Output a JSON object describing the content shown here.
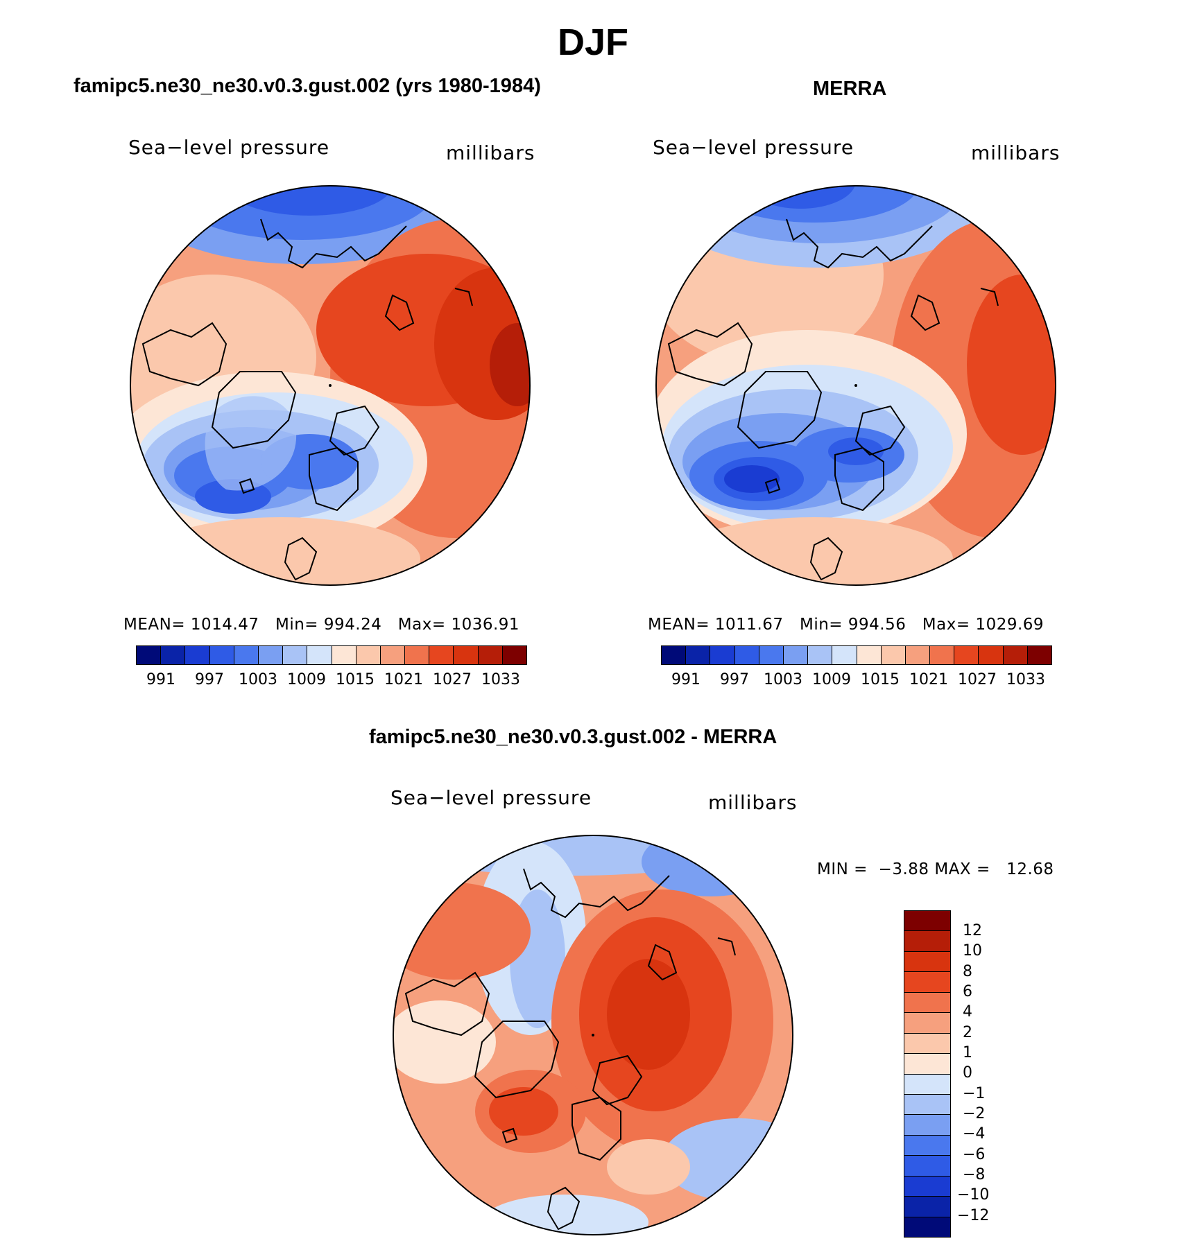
{
  "figure": {
    "title": "DJF"
  },
  "panels": [
    {
      "title": "famipc5.ne30_ne30.v0.3.gust.002 (yrs 1980-1984)",
      "variable": "Sea−level pressure",
      "units": "millibars",
      "stats": {
        "mean_label": "MEAN=",
        "mean": "1014.47",
        "min_label": "Min=",
        "min": "994.24",
        "max_label": "Max=",
        "max": "1036.91"
      },
      "colorbar_labels": [
        "991",
        "997",
        "1003",
        "1009",
        "1015",
        "1021",
        "1027",
        "1033"
      ]
    },
    {
      "title": "MERRA",
      "variable": "Sea−level pressure",
      "units": "millibars",
      "stats": {
        "mean_label": "MEAN=",
        "mean": "1011.67",
        "min_label": "Min=",
        "min": "994.56",
        "max_label": "Max=",
        "max": "1029.69"
      },
      "colorbar_labels": [
        "991",
        "997",
        "1003",
        "1009",
        "1015",
        "1021",
        "1027",
        "1033"
      ]
    },
    {
      "title": "famipc5.ne30_ne30.v0.3.gust.002 - MERRA",
      "variable": "Sea−level pressure",
      "units": "millibars",
      "stats": {
        "min_label": "MIN =",
        "min": "−3.88",
        "max_label": "MAX =",
        "max": "12.68"
      },
      "colorbar_labels": [
        "12",
        "10",
        "8",
        "6",
        "4",
        "2",
        "1",
        "0",
        "−1",
        "−2",
        "−4",
        "−6",
        "−8",
        "−10",
        "−12"
      ]
    }
  ],
  "palettes": {
    "absolute": [
      "#000a78",
      "#0a23a8",
      "#1a3cd2",
      "#2f5be6",
      "#4a78ee",
      "#7a9ff2",
      "#a9c3f6",
      "#d4e4fa",
      "#fde6d6",
      "#fbc8ac",
      "#f6a07e",
      "#f0734d",
      "#e6461f",
      "#d8340f",
      "#b51e08",
      "#7d0000"
    ],
    "difference": [
      "#7d0000",
      "#b51e08",
      "#d8340f",
      "#e6461f",
      "#f0734d",
      "#f6a07e",
      "#fbc8ac",
      "#fde6d6",
      "#d4e4fa",
      "#a9c3f6",
      "#7a9ff2",
      "#4a78ee",
      "#2f5be6",
      "#1a3cd2",
      "#0a23a8",
      "#000a78"
    ]
  }
}
